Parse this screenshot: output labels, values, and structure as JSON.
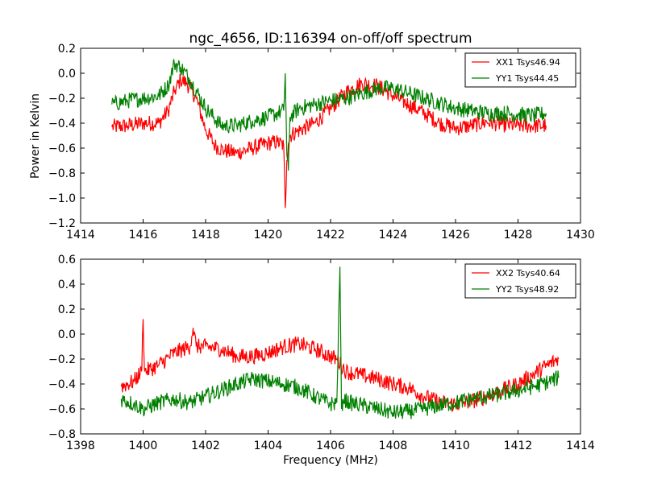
{
  "figure": {
    "title": "ngc_4656, ID:116394 on-off/off spectrum",
    "ylabel": "Power in Kelvin",
    "xlabel": "Frequency (MHz)"
  },
  "chart_data": [
    {
      "type": "line",
      "title": "ngc_4656, ID:116394 on-off/off spectrum",
      "xlabel": "",
      "ylabel": "Power in Kelvin",
      "xlim": [
        1414,
        1430
      ],
      "ylim": [
        -1.2,
        0.2
      ],
      "xticks": [
        1414,
        1416,
        1418,
        1420,
        1422,
        1424,
        1426,
        1428,
        1430
      ],
      "yticks": [
        -1.2,
        -1.0,
        -0.8,
        -0.6,
        -0.4,
        -0.2,
        0.0,
        0.2
      ],
      "xtick_labels": [
        "1414",
        "1416",
        "1418",
        "1420",
        "1422",
        "1424",
        "1426",
        "1428",
        "1430"
      ],
      "ytick_labels": [
        "−1.2",
        "−1.0",
        "−0.8",
        "−0.6",
        "−0.4",
        "−0.2",
        "0.0",
        "0.2"
      ],
      "legend_position": "top-right",
      "series": [
        {
          "name": "XX1 Tsys46.94",
          "color": "#ff0000",
          "x": [
            1415.0,
            1415.5,
            1416.0,
            1416.5,
            1416.8,
            1417.0,
            1417.2,
            1417.4,
            1417.7,
            1418.0,
            1418.3,
            1418.6,
            1419.0,
            1419.5,
            1420.0,
            1420.3,
            1420.5,
            1420.55,
            1420.6,
            1420.65,
            1420.7,
            1420.9,
            1421.5,
            1422.0,
            1422.5,
            1423.0,
            1423.5,
            1424.0,
            1424.5,
            1425.0,
            1425.5,
            1426.0,
            1426.5,
            1427.0,
            1427.5,
            1428.0,
            1428.5,
            1428.9
          ],
          "values": [
            -0.43,
            -0.42,
            -0.4,
            -0.4,
            -0.3,
            -0.15,
            -0.05,
            -0.08,
            -0.2,
            -0.45,
            -0.58,
            -0.62,
            -0.64,
            -0.6,
            -0.56,
            -0.55,
            -0.58,
            -1.08,
            -0.7,
            -0.56,
            -0.5,
            -0.47,
            -0.4,
            -0.28,
            -0.15,
            -0.08,
            -0.1,
            -0.18,
            -0.25,
            -0.32,
            -0.4,
            -0.44,
            -0.42,
            -0.39,
            -0.41,
            -0.42,
            -0.42,
            -0.42
          ]
        },
        {
          "name": "YY1 Tsys44.45",
          "color": "#008000",
          "x": [
            1415.0,
            1415.5,
            1416.0,
            1416.5,
            1416.8,
            1417.0,
            1417.2,
            1417.5,
            1418.0,
            1418.5,
            1419.0,
            1419.5,
            1420.0,
            1420.3,
            1420.5,
            1420.55,
            1420.6,
            1420.65,
            1420.7,
            1421.0,
            1421.5,
            1422.0,
            1422.5,
            1423.0,
            1423.5,
            1424.0,
            1424.5,
            1425.0,
            1425.5,
            1426.0,
            1426.5,
            1427.0,
            1427.5,
            1428.0,
            1428.5,
            1428.9
          ],
          "values": [
            -0.25,
            -0.22,
            -0.2,
            -0.18,
            -0.1,
            0.08,
            0.05,
            -0.05,
            -0.28,
            -0.42,
            -0.42,
            -0.38,
            -0.35,
            -0.32,
            -0.3,
            0.0,
            -0.65,
            -0.78,
            -0.35,
            -0.28,
            -0.25,
            -0.22,
            -0.2,
            -0.16,
            -0.12,
            -0.12,
            -0.16,
            -0.2,
            -0.24,
            -0.28,
            -0.3,
            -0.32,
            -0.32,
            -0.33,
            -0.34,
            -0.32
          ]
        }
      ]
    },
    {
      "type": "line",
      "title": "",
      "xlabel": "Frequency (MHz)",
      "ylabel": "",
      "xlim": [
        1398,
        1414
      ],
      "ylim": [
        -0.8,
        0.6
      ],
      "xticks": [
        1398,
        1400,
        1402,
        1404,
        1406,
        1408,
        1410,
        1412,
        1414
      ],
      "yticks": [
        -0.8,
        -0.6,
        -0.4,
        -0.2,
        0.0,
        0.2,
        0.4,
        0.6
      ],
      "xtick_labels": [
        "1398",
        "1400",
        "1402",
        "1404",
        "1406",
        "1408",
        "1410",
        "1412",
        "1414"
      ],
      "ytick_labels": [
        "−0.8",
        "−0.6",
        "−0.4",
        "−0.2",
        "0.0",
        "0.2",
        "0.4",
        "0.6"
      ],
      "legend_position": "top-right",
      "series": [
        {
          "name": "XX2 Tsys40.64",
          "color": "#ff0000",
          "x": [
            1399.3,
            1399.7,
            1399.95,
            1400.0,
            1400.05,
            1400.5,
            1401.0,
            1401.5,
            1401.6,
            1401.7,
            1402.0,
            1402.5,
            1403.0,
            1403.5,
            1404.0,
            1404.5,
            1405.0,
            1405.5,
            1406.0,
            1406.2,
            1406.5,
            1407.0,
            1407.5,
            1408.0,
            1408.5,
            1409.0,
            1409.5,
            1410.0,
            1410.5,
            1411.0,
            1411.5,
            1412.0,
            1412.5,
            1413.0,
            1413.3
          ],
          "values": [
            -0.42,
            -0.38,
            -0.3,
            0.12,
            -0.3,
            -0.25,
            -0.15,
            -0.1,
            0.05,
            -0.1,
            -0.1,
            -0.12,
            -0.18,
            -0.18,
            -0.15,
            -0.1,
            -0.08,
            -0.12,
            -0.18,
            -0.2,
            -0.3,
            -0.33,
            -0.36,
            -0.4,
            -0.43,
            -0.5,
            -0.55,
            -0.56,
            -0.54,
            -0.5,
            -0.45,
            -0.4,
            -0.32,
            -0.24,
            -0.2
          ]
        },
        {
          "name": "YY2 Tsys48.92",
          "color": "#008000",
          "x": [
            1399.3,
            1399.7,
            1400.0,
            1400.5,
            1401.0,
            1401.5,
            1402.0,
            1402.5,
            1403.0,
            1403.5,
            1404.0,
            1404.5,
            1405.0,
            1405.5,
            1406.0,
            1406.2,
            1406.3,
            1406.35,
            1406.4,
            1406.6,
            1407.0,
            1407.5,
            1408.0,
            1408.5,
            1409.0,
            1409.5,
            1410.0,
            1410.5,
            1411.0,
            1411.5,
            1412.0,
            1412.5,
            1413.0,
            1413.3
          ],
          "values": [
            -0.52,
            -0.56,
            -0.6,
            -0.55,
            -0.52,
            -0.55,
            -0.5,
            -0.45,
            -0.4,
            -0.36,
            -0.38,
            -0.4,
            -0.43,
            -0.5,
            -0.56,
            -0.55,
            0.54,
            -0.6,
            -0.52,
            -0.55,
            -0.57,
            -0.6,
            -0.63,
            -0.62,
            -0.6,
            -0.57,
            -0.55,
            -0.52,
            -0.5,
            -0.48,
            -0.45,
            -0.42,
            -0.38,
            -0.35
          ]
        }
      ]
    }
  ]
}
